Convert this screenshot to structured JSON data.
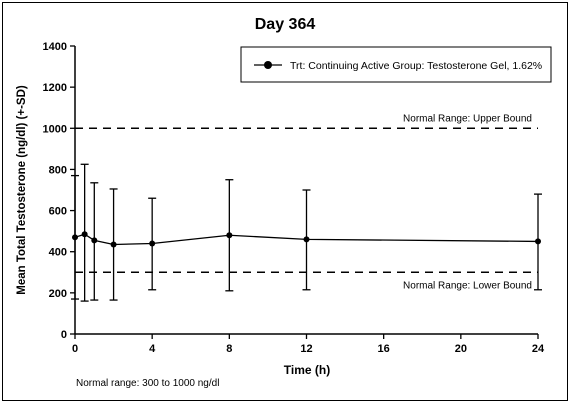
{
  "chart_data": {
    "type": "line",
    "title": "Day 364",
    "xlabel": "Time (h)",
    "ylabel": "Mean Total Testosterone (ng/dl) (+-SD)",
    "xlim": [
      0,
      24
    ],
    "ylim": [
      0,
      1400
    ],
    "xticks": [
      0,
      4,
      8,
      12,
      16,
      20,
      24
    ],
    "yticks": [
      0,
      200,
      400,
      600,
      800,
      1000,
      1200,
      1400
    ],
    "grid": false,
    "legend_position": "top-right",
    "series": [
      {
        "name": "Trt: Continuing Active Group: Testosterone Gel, 1.62%",
        "x": [
          0,
          0.5,
          1,
          2,
          4,
          8,
          12,
          24
        ],
        "y": [
          470,
          485,
          455,
          435,
          440,
          480,
          460,
          450
        ],
        "sd_low": [
          170,
          160,
          165,
          165,
          215,
          210,
          215,
          215
        ],
        "sd_high": [
          770,
          825,
          735,
          705,
          660,
          750,
          700,
          680
        ]
      }
    ],
    "reference_lines": [
      {
        "y": 1000,
        "label": "Normal Range: Upper Bound"
      },
      {
        "y": 300,
        "label": "Normal Range: Lower Bound"
      }
    ],
    "footnote": "Normal range: 300 to 1000 ng/dl"
  }
}
